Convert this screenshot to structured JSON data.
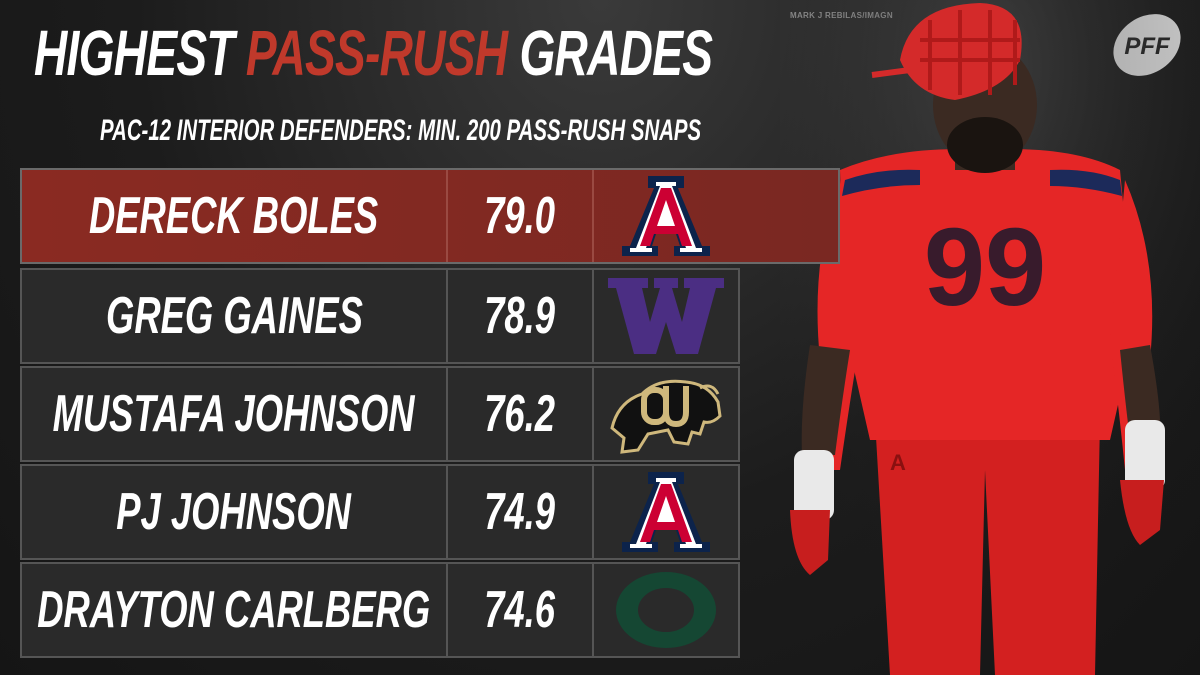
{
  "title": {
    "part1": "HIGHEST ",
    "accent": "PASS-RUSH",
    "part3": " GRADES"
  },
  "subtitle": "PAC-12 INTERIOR DEFENDERS: MIN. 200 PASS-RUSH SNAPS",
  "credit": "MARK J REBILAS/IMAGN",
  "brand": "PFF",
  "colors": {
    "accent": "#c0392b",
    "highlight_row": "#7e2a23",
    "row": "#2a2a2a"
  },
  "rows": [
    {
      "name": "DERECK BOLES",
      "grade": "79.0",
      "logo": "arizona-logo"
    },
    {
      "name": "GREG GAINES",
      "grade": "78.9",
      "logo": "washington-logo"
    },
    {
      "name": "MUSTAFA JOHNSON",
      "grade": "76.2",
      "logo": "colorado-logo"
    },
    {
      "name": "PJ JOHNSON",
      "grade": "74.9",
      "logo": "arizona-logo"
    },
    {
      "name": "DRAYTON CARLBERG",
      "grade": "74.6",
      "logo": "oregon-logo"
    }
  ],
  "player_jersey_number": "99"
}
